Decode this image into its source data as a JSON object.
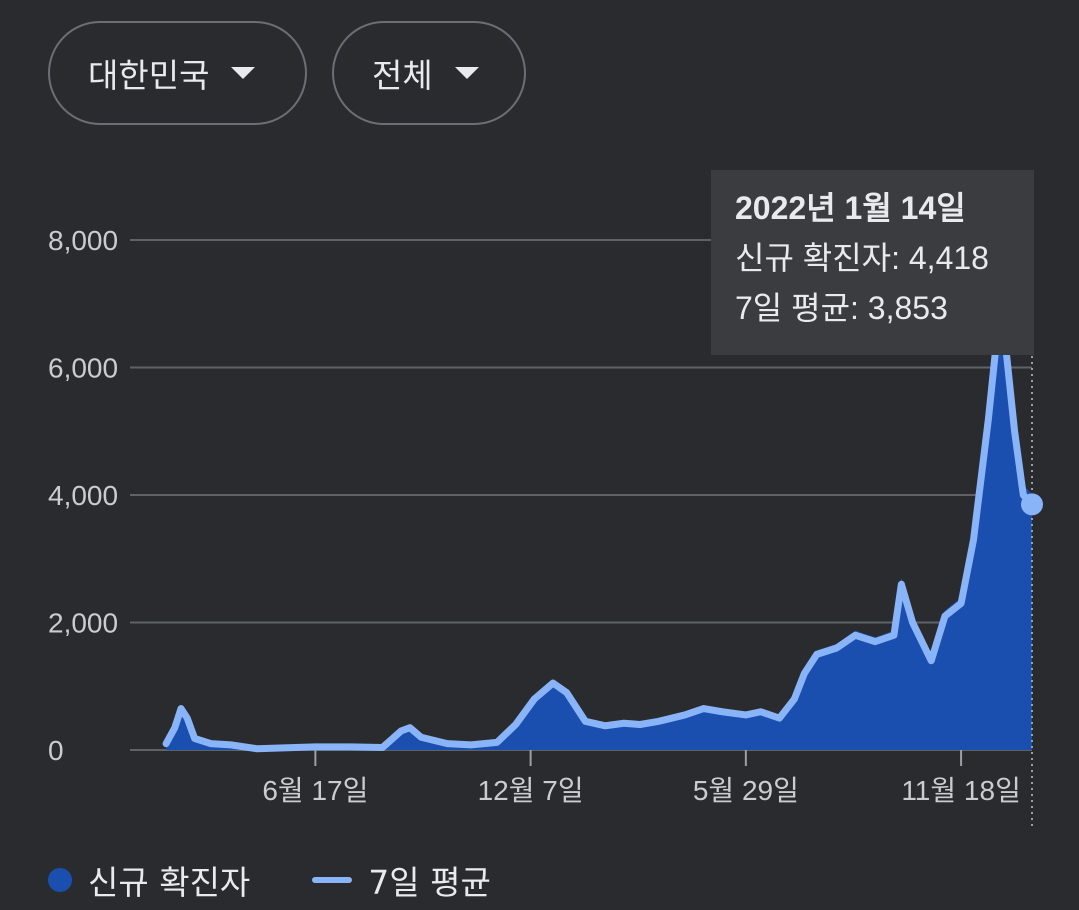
{
  "filters": {
    "region": "대한민국",
    "scope": "전체"
  },
  "tooltip": {
    "date": "2022년 1월 14일",
    "new_cases_label": "신규 확진자",
    "new_cases_value": "4,418",
    "avg_label": "7일 평균",
    "avg_value": "3,853"
  },
  "legend": {
    "bars": "신규 확진자",
    "line": "7일 평균"
  },
  "colors": {
    "bars": "#1a4fb0",
    "line": "#8ab4f8",
    "background": "#2a2b2f"
  },
  "chart_data": {
    "type": "area",
    "ylim": [
      0,
      8000
    ],
    "yticks": [
      "0",
      "2,000",
      "4,000",
      "6,000",
      "8,000"
    ],
    "xticks": [
      "6월 17일",
      "12월 7일",
      "5월 29일",
      "11월 18일"
    ],
    "grid": true,
    "legend_position": "bottom-left",
    "series": [
      {
        "name": "7일 평균",
        "points": [
          [
            "2020-02-18",
            100
          ],
          [
            "2020-02-25",
            350
          ],
          [
            "2020-03-01",
            650
          ],
          [
            "2020-03-06",
            500
          ],
          [
            "2020-03-12",
            180
          ],
          [
            "2020-03-25",
            100
          ],
          [
            "2020-04-10",
            80
          ],
          [
            "2020-05-01",
            20
          ],
          [
            "2020-06-01",
            40
          ],
          [
            "2020-06-17",
            50
          ],
          [
            "2020-07-15",
            50
          ],
          [
            "2020-08-10",
            40
          ],
          [
            "2020-08-25",
            300
          ],
          [
            "2020-09-01",
            350
          ],
          [
            "2020-09-10",
            200
          ],
          [
            "2020-10-01",
            100
          ],
          [
            "2020-10-20",
            80
          ],
          [
            "2020-11-10",
            120
          ],
          [
            "2020-11-25",
            400
          ],
          [
            "2020-12-10",
            800
          ],
          [
            "2020-12-25",
            1050
          ],
          [
            "2021-01-05",
            900
          ],
          [
            "2021-01-20",
            450
          ],
          [
            "2021-02-05",
            380
          ],
          [
            "2021-02-20",
            420
          ],
          [
            "2021-03-05",
            400
          ],
          [
            "2021-03-20",
            450
          ],
          [
            "2021-04-10",
            550
          ],
          [
            "2021-04-25",
            650
          ],
          [
            "2021-05-10",
            600
          ],
          [
            "2021-05-29",
            550
          ],
          [
            "2021-06-10",
            600
          ],
          [
            "2021-06-25",
            500
          ],
          [
            "2021-07-07",
            800
          ],
          [
            "2021-07-15",
            1200
          ],
          [
            "2021-07-25",
            1500
          ],
          [
            "2021-08-10",
            1600
          ],
          [
            "2021-08-25",
            1800
          ],
          [
            "2021-09-10",
            1700
          ],
          [
            "2021-09-25",
            1800
          ],
          [
            "2021-10-01",
            2600
          ],
          [
            "2021-10-10",
            2000
          ],
          [
            "2021-10-25",
            1400
          ],
          [
            "2021-11-05",
            2100
          ],
          [
            "2021-11-18",
            2300
          ],
          [
            "2021-11-28",
            3300
          ],
          [
            "2021-12-10",
            5200
          ],
          [
            "2021-12-18",
            6700
          ],
          [
            "2021-12-24",
            6300
          ],
          [
            "2021-12-31",
            5000
          ],
          [
            "2022-01-07",
            4000
          ],
          [
            "2022-01-14",
            3853
          ]
        ]
      }
    ],
    "highlight": {
      "date": "2022-01-14",
      "new_cases": 4418,
      "avg": 3853
    }
  }
}
